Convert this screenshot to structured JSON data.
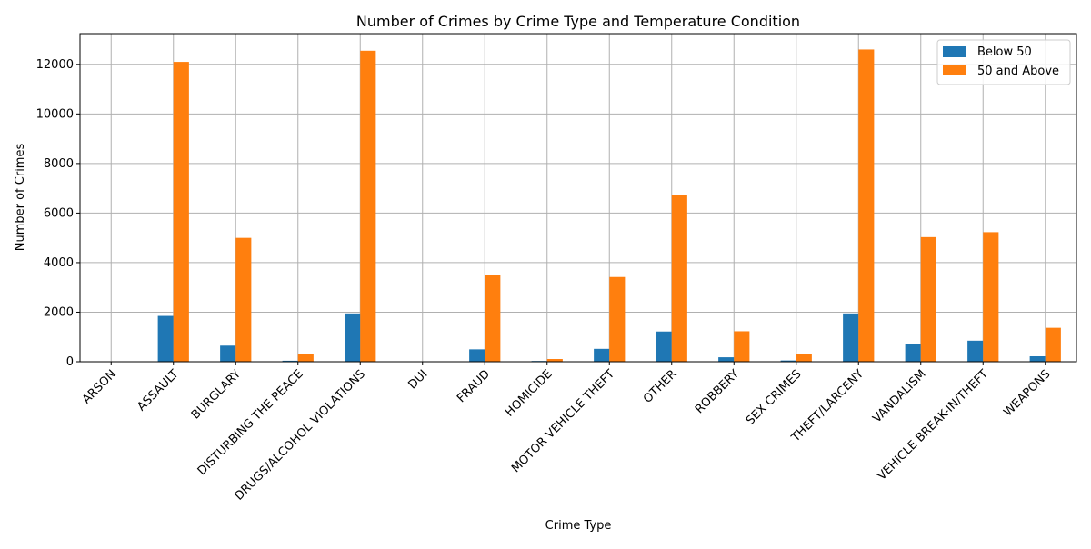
{
  "chart_data": {
    "type": "bar",
    "title": "Number of Crimes by Crime Type and Temperature Condition",
    "xlabel": "Crime Type",
    "ylabel": "Number of Crimes",
    "categories": [
      "ARSON",
      "ASSAULT",
      "BURGLARY",
      "DISTURBING THE PEACE",
      "DRUGS/ALCOHOL VIOLATIONS",
      "DUI",
      "FRAUD",
      "HOMICIDE",
      "MOTOR VEHICLE THEFT",
      "OTHER",
      "ROBBERY",
      "SEX CRIMES",
      "THEFT/LARCENY",
      "VANDALISM",
      "VEHICLE BREAK-IN/THEFT",
      "WEAPONS"
    ],
    "series": [
      {
        "name": "Below 50",
        "color": "#1f77b4",
        "values": [
          5,
          1850,
          650,
          40,
          1950,
          5,
          500,
          30,
          520,
          1220,
          180,
          50,
          1950,
          720,
          850,
          220
        ]
      },
      {
        "name": "50 and Above",
        "color": "#ff7f0e",
        "values": [
          10,
          12100,
          5000,
          300,
          12550,
          10,
          3520,
          110,
          3420,
          6720,
          1230,
          330,
          12600,
          5030,
          5230,
          1370
        ]
      }
    ],
    "ylim": [
      0,
      13240
    ],
    "yticks": [
      0,
      2000,
      4000,
      6000,
      8000,
      10000,
      12000
    ],
    "grid": true,
    "legend_position": "top-right"
  }
}
